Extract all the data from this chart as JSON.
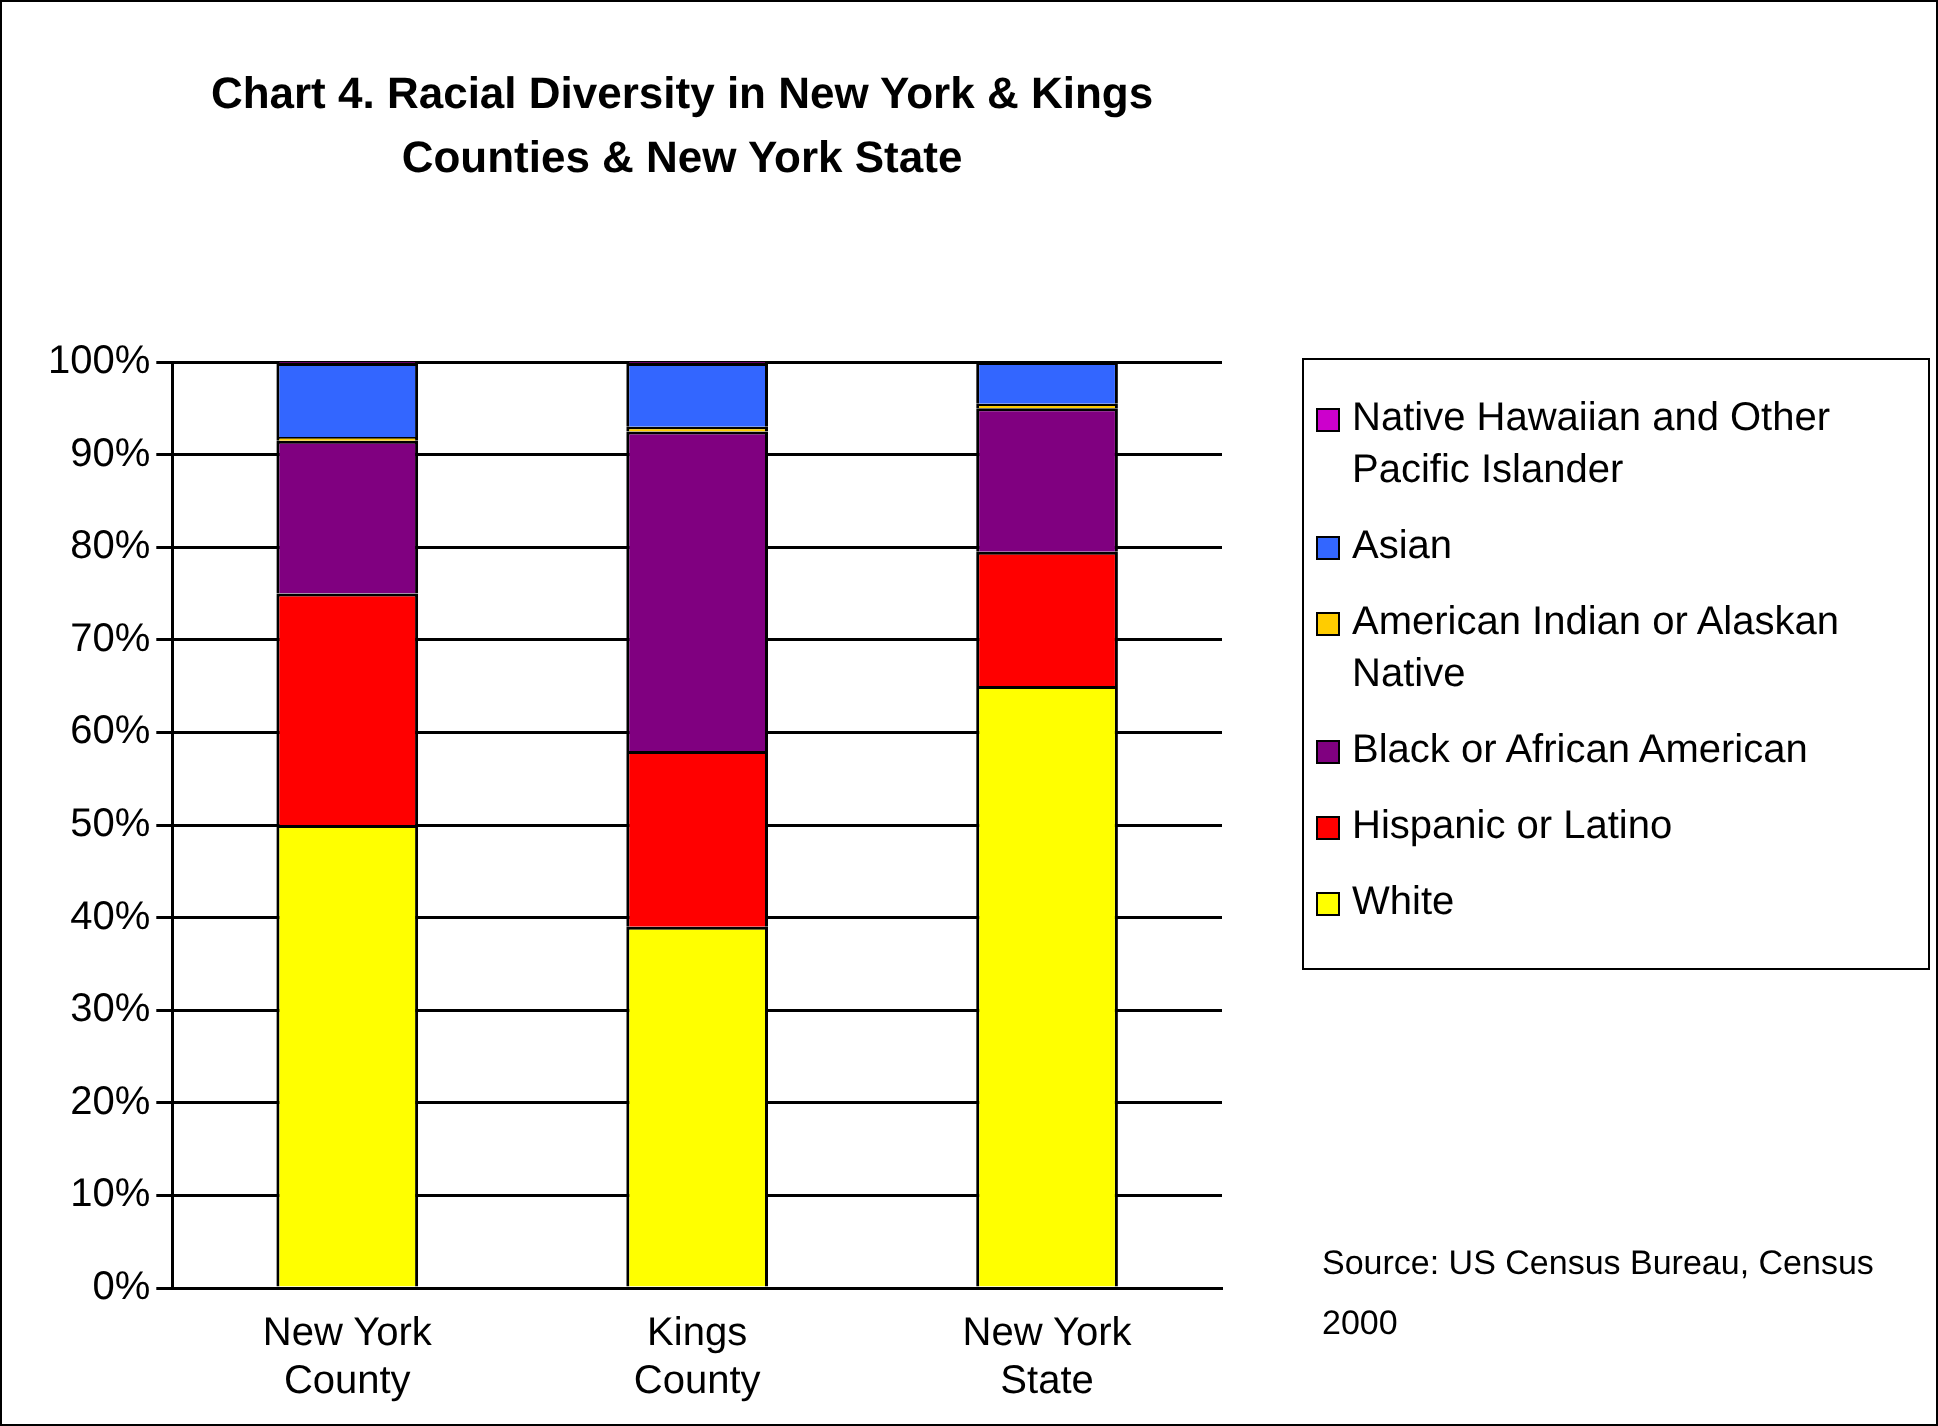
{
  "chart_data": {
    "type": "bar",
    "title": "Chart 4. Racial Diversity in New York & Kings Counties & New York State",
    "categories": [
      "New York County",
      "Kings County",
      "New York State"
    ],
    "stacked": true,
    "series": [
      {
        "name": "White",
        "color": "#ffff00",
        "values": [
          50,
          39,
          65
        ]
      },
      {
        "name": "Hispanic or Latino",
        "color": "#ff0000",
        "values": [
          25,
          19,
          14.5
        ]
      },
      {
        "name": "Black or African American",
        "color": "#800080",
        "values": [
          16.5,
          34.5,
          15.5
        ]
      },
      {
        "name": "American Indian or Alaskan Native",
        "color": "#ffcc00",
        "values": [
          0.4,
          0.5,
          0.5
        ]
      },
      {
        "name": "Asian",
        "color": "#3366ff",
        "values": [
          8,
          6.9,
          4.5
        ]
      },
      {
        "name": "Native Hawaiian and Other Pacific Islander",
        "color": "#cc00cc",
        "values": [
          0.1,
          0.1,
          0
        ]
      }
    ],
    "ylim": [
      0,
      100
    ],
    "yticks": [
      {
        "value": 0,
        "label": "0%"
      },
      {
        "value": 10,
        "label": "10%"
      },
      {
        "value": 20,
        "label": "20%"
      },
      {
        "value": 30,
        "label": "30%"
      },
      {
        "value": 40,
        "label": "40%"
      },
      {
        "value": 50,
        "label": "50%"
      },
      {
        "value": 60,
        "label": "60%"
      },
      {
        "value": 70,
        "label": "70%"
      },
      {
        "value": 80,
        "label": "80%"
      },
      {
        "value": 90,
        "label": "90%"
      },
      {
        "value": 100,
        "label": "100%"
      }
    ],
    "grid": "y",
    "legend": "right",
    "annotations": [
      "Source: US Census Bureau, Census 2000"
    ]
  }
}
